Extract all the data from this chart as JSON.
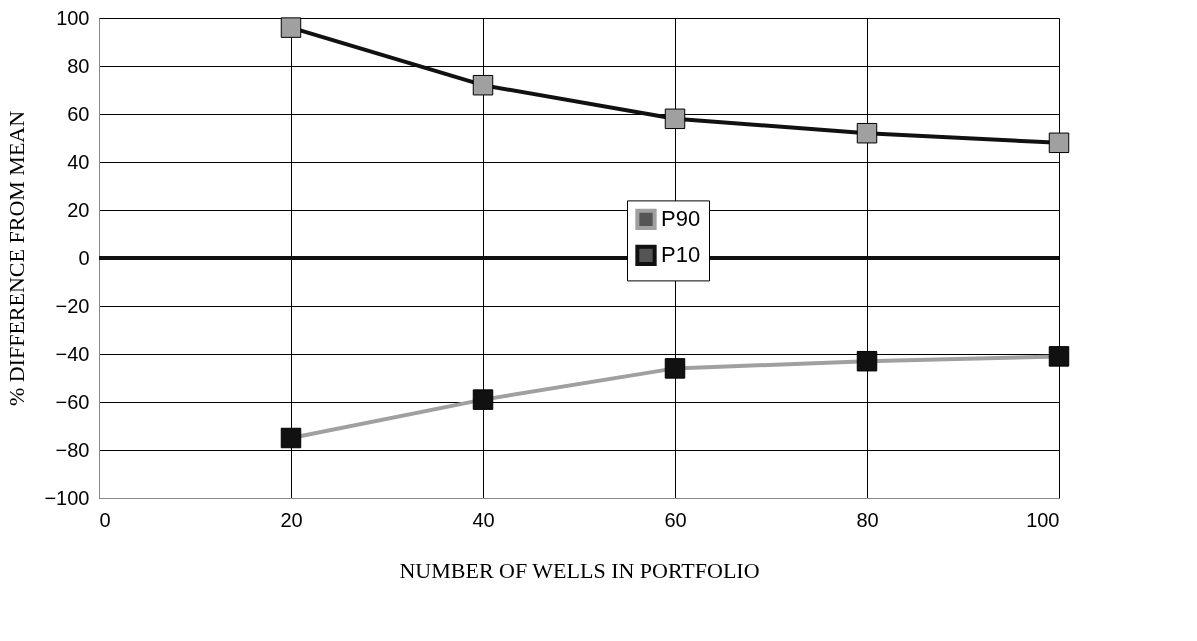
{
  "chart_data": {
    "type": "line",
    "xlabel": "NUMBER OF WELLS IN PORTFOLIO",
    "ylabel": "% DIFFERENCE FROM MEAN",
    "x": [
      20,
      40,
      60,
      80,
      100
    ],
    "series": [
      {
        "name": "P90",
        "color": "#a0a0a0",
        "colors": [
          "#111111",
          "#111111",
          "#111111",
          "#111111",
          "#111111"
        ],
        "values": [
          -75,
          -59,
          -46,
          -43,
          -41
        ]
      },
      {
        "name": "P10",
        "color": "#111111",
        "colors": [
          "#a0a0a0",
          "#a0a0a0",
          "#a0a0a0",
          "#a0a0a0",
          "#a0a0a0"
        ],
        "values": [
          96,
          72,
          58,
          52,
          48
        ]
      }
    ],
    "xlim": [
      0,
      100
    ],
    "xticks": [
      0,
      20,
      40,
      60,
      80,
      100
    ],
    "ylim": [
      -100,
      100
    ],
    "yticks": [
      -100,
      -80,
      -60,
      -40,
      -20,
      0,
      20,
      40,
      60,
      80,
      100
    ],
    "ref_lines": [
      {
        "axis": "y",
        "value": 0,
        "color": "#111111"
      }
    ],
    "grid": true,
    "legend": "center",
    "marker": "square",
    "line_style": "solid"
  }
}
